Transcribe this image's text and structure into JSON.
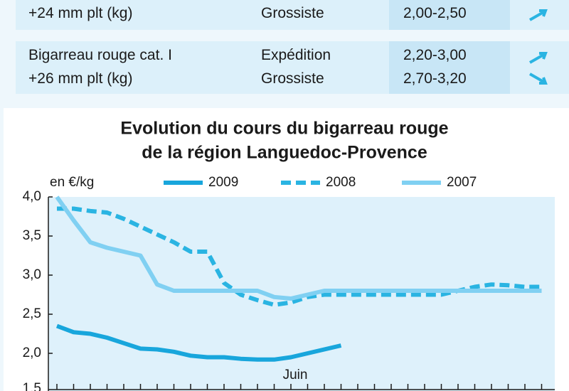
{
  "table": {
    "rows": [
      {
        "product": [
          "+24 mm plt (kg)"
        ],
        "stage": [
          "Grossiste"
        ],
        "price": [
          "2,00-2,50"
        ]
      },
      {
        "product": [
          "Bigarreau rouge cat. I",
          "+26 mm plt (kg)"
        ],
        "stage": [
          "Expédition",
          "Grossiste"
        ],
        "price": [
          "2,20-3,00",
          "2,70-3,20"
        ]
      }
    ]
  },
  "chart_data": {
    "type": "line",
    "title": "Evolution du cours du bigarreau rouge",
    "subtitle": "de la région Languedoc-Provence",
    "ylabel": "en €/kg",
    "categories": [
      null,
      null,
      null,
      null,
      null,
      null,
      null,
      null,
      null,
      null,
      null,
      null,
      null,
      null,
      "Juin",
      null,
      null,
      null,
      null,
      null,
      null,
      null,
      null,
      null,
      null,
      null,
      null,
      null,
      null,
      null
    ],
    "ylim": [
      1.5,
      4.0
    ],
    "yticks": [
      {
        "value": 1.5,
        "label": "1,5"
      },
      {
        "value": 2.0,
        "label": "2,0"
      },
      {
        "value": 2.5,
        "label": "2,5"
      },
      {
        "value": 3.0,
        "label": "3,0"
      },
      {
        "value": 3.5,
        "label": "3,5"
      },
      {
        "value": 4.0,
        "label": "4,0"
      }
    ],
    "grid": false,
    "series": [
      {
        "name": "2009",
        "color": "#18a6dc",
        "style": "solid",
        "values": [
          2.35,
          2.27,
          2.25,
          2.2,
          2.13,
          2.06,
          2.05,
          2.02,
          1.97,
          1.95,
          1.95,
          1.93,
          1.92,
          1.92,
          1.95,
          2.0,
          2.05,
          2.1,
          null,
          null,
          null,
          null,
          null,
          null,
          null,
          null,
          null,
          null,
          null,
          null
        ]
      },
      {
        "name": "2008",
        "color": "#2ab4e2",
        "style": "dashed",
        "values": [
          3.85,
          3.85,
          3.82,
          3.8,
          3.72,
          3.62,
          3.52,
          3.42,
          3.3,
          3.3,
          2.9,
          2.75,
          2.68,
          2.62,
          2.65,
          2.72,
          2.75,
          2.75,
          2.75,
          2.75,
          2.75,
          2.75,
          2.75,
          2.75,
          2.8,
          2.85,
          2.88,
          2.87,
          2.85,
          2.85
        ]
      },
      {
        "name": "2007",
        "color": "#80d0f2",
        "style": "solid",
        "values": [
          4.0,
          3.7,
          3.42,
          3.35,
          3.3,
          3.25,
          2.88,
          2.8,
          2.8,
          2.8,
          2.8,
          2.8,
          2.8,
          2.72,
          2.7,
          2.75,
          2.8,
          2.8,
          2.8,
          2.8,
          2.8,
          2.8,
          2.8,
          2.8,
          2.8,
          2.8,
          2.8,
          2.8,
          2.8,
          2.8
        ]
      }
    ]
  }
}
